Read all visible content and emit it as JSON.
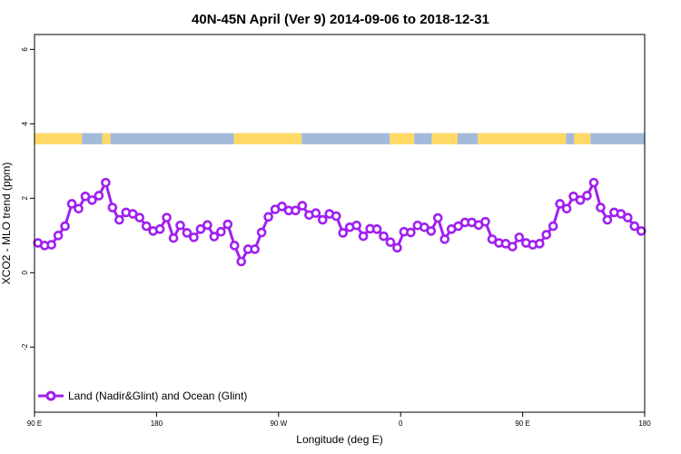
{
  "chart_data": {
    "type": "line",
    "title": "40N-45N April (Ver 9)   2014-09-06 to 2018-12-31",
    "xlabel": "Longitude (deg E)",
    "ylabel": "XCO2 - MLO trend (ppm)",
    "x_ticks": [
      {
        "value": 0,
        "label": "90 E"
      },
      {
        "value": 90,
        "label": "180"
      },
      {
        "value": 180,
        "label": "90 W"
      },
      {
        "value": 270,
        "label": "0"
      },
      {
        "value": 360,
        "label": "90 E"
      },
      {
        "value": 450,
        "label": "180"
      }
    ],
    "y_ticks": [
      {
        "value": -2,
        "label": "-2"
      },
      {
        "value": 0,
        "label": "0"
      },
      {
        "value": 2,
        "label": "2"
      },
      {
        "value": 4,
        "label": "4"
      },
      {
        "value": 6,
        "label": "6"
      }
    ],
    "xlim": [
      0,
      450
    ],
    "ylim": [
      -3.75,
      6.4
    ],
    "grid": false,
    "legend_position": "bottom-left",
    "colors": {
      "series": "#A020F0",
      "land": "#FFD966",
      "ocean": "#A3BBDB"
    },
    "land_ocean_band": {
      "y_range": [
        3.45,
        3.75
      ],
      "segments": [
        {
          "type": "land",
          "x_from": 0,
          "x_to": 35
        },
        {
          "type": "ocean",
          "x_from": 35,
          "x_to": 50
        },
        {
          "type": "land",
          "x_from": 50,
          "x_to": 56
        },
        {
          "type": "ocean",
          "x_from": 56,
          "x_to": 147
        },
        {
          "type": "land",
          "x_from": 147,
          "x_to": 197
        },
        {
          "type": "ocean",
          "x_from": 197,
          "x_to": 262
        },
        {
          "type": "land",
          "x_from": 262,
          "x_to": 280
        },
        {
          "type": "ocean",
          "x_from": 280,
          "x_to": 293
        },
        {
          "type": "land",
          "x_from": 293,
          "x_to": 312
        },
        {
          "type": "ocean",
          "x_from": 312,
          "x_to": 327
        },
        {
          "type": "land",
          "x_from": 327,
          "x_to": 392
        },
        {
          "type": "ocean",
          "x_from": 392,
          "x_to": 398
        },
        {
          "type": "land",
          "x_from": 398,
          "x_to": 410
        },
        {
          "type": "ocean",
          "x_from": 410,
          "x_to": 450
        }
      ]
    },
    "series": [
      {
        "name": "Land (Nadir&Glint) and Ocean (Glint)",
        "x": [
          2.5,
          7.5,
          12.5,
          17.5,
          22.5,
          27.5,
          32.5,
          37.5,
          42.5,
          47.5,
          52.5,
          57.5,
          62.5,
          67.5,
          72.5,
          77.5,
          82.5,
          87.5,
          92.5,
          97.5,
          102.5,
          107.5,
          112.5,
          117.5,
          122.5,
          127.5,
          132.5,
          137.5,
          142.5,
          147.5,
          152.5,
          157.5,
          162.5,
          167.5,
          172.5,
          177.5,
          182.5,
          187.5,
          192.5,
          197.5,
          202.5,
          207.5,
          212.5,
          217.5,
          222.5,
          227.5,
          232.5,
          237.5,
          242.5,
          247.5,
          252.5,
          257.5,
          262.5,
          267.5,
          272.5,
          277.5,
          282.5,
          287.5,
          292.5,
          297.5,
          302.5,
          307.5,
          312.5,
          317.5,
          322.5,
          327.5,
          332.5,
          337.5,
          342.5,
          347.5,
          352.5,
          357.5,
          362.5,
          367.5,
          372.5,
          377.5,
          382.5,
          387.5,
          392.5,
          397.5,
          402.5,
          407.5,
          412.5,
          417.5,
          422.5,
          427.5,
          432.5,
          437.5,
          442.5,
          447.5
        ],
        "y": [
          0.8,
          0.73,
          0.75,
          1.0,
          1.25,
          1.85,
          1.72,
          2.05,
          1.95,
          2.07,
          2.42,
          1.75,
          1.42,
          1.62,
          1.58,
          1.48,
          1.25,
          1.12,
          1.17,
          1.48,
          0.93,
          1.27,
          1.07,
          0.95,
          1.17,
          1.28,
          0.97,
          1.1,
          1.3,
          0.73,
          0.3,
          0.63,
          0.63,
          1.08,
          1.5,
          1.7,
          1.78,
          1.67,
          1.67,
          1.8,
          1.55,
          1.6,
          1.42,
          1.58,
          1.52,
          1.07,
          1.22,
          1.27,
          0.98,
          1.18,
          1.17,
          0.98,
          0.82,
          0.67,
          1.1,
          1.08,
          1.27,
          1.22,
          1.12,
          1.47,
          0.9,
          1.17,
          1.25,
          1.35,
          1.35,
          1.28,
          1.37,
          0.9,
          0.8,
          0.78,
          0.7,
          0.95,
          0.8,
          0.75,
          0.78,
          1.02,
          1.25,
          1.85,
          1.72,
          2.05,
          1.95,
          2.07,
          2.42,
          1.75,
          1.42,
          1.62,
          1.58,
          1.48,
          1.25,
          1.12
        ]
      }
    ]
  }
}
